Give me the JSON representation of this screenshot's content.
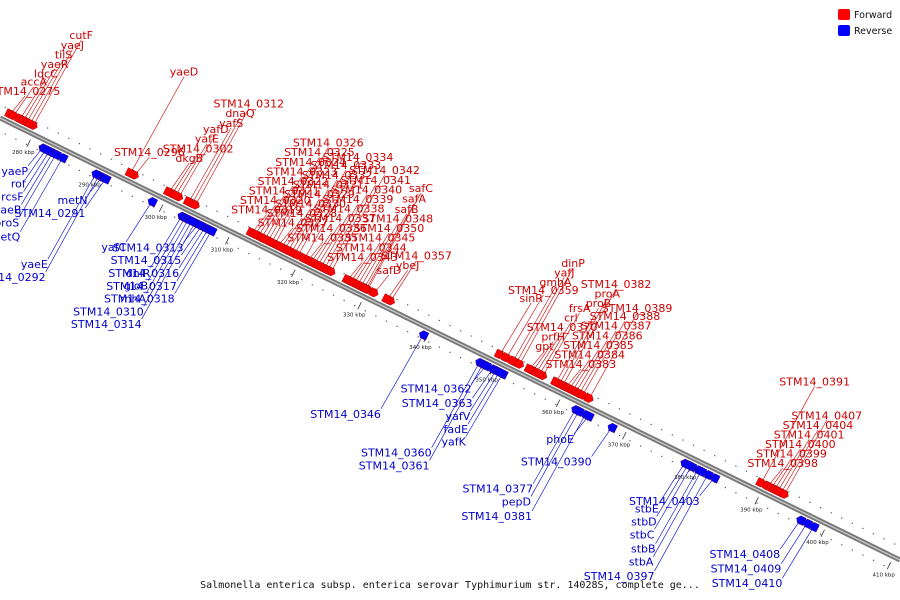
{
  "caption": "Salmonella enterica subsp. enterica serovar Typhimurium str. 14028S, complete ge...",
  "legend": {
    "placement": "top-right",
    "items": [
      {
        "label": "Forward",
        "color": "#ff0000"
      },
      {
        "label": "Reverse",
        "color": "#0000ff"
      }
    ]
  },
  "colors": {
    "forward": "#ff0000",
    "forward_label": "#cc0000",
    "reverse": "#0000ff",
    "reverse_label": "#0000cc",
    "backbone": "#777777"
  },
  "axis": {
    "unit": "kbp",
    "start_kbp": 275,
    "end_kbp": 411,
    "ticks": [
      {
        "label": "280 kbp",
        "kbp": 280
      },
      {
        "label": "290 kbp",
        "kbp": 290
      },
      {
        "label": "300 kbp",
        "kbp": 300
      },
      {
        "label": "310 kbp",
        "kbp": 310
      },
      {
        "label": "320 kbp",
        "kbp": 320
      },
      {
        "label": "330 kbp",
        "kbp": 330
      },
      {
        "label": "340 kbp",
        "kbp": 340
      },
      {
        "label": "350 kbp",
        "kbp": 350
      },
      {
        "label": "360 kbp",
        "kbp": 360
      },
      {
        "label": "370 kbp",
        "kbp": 370
      },
      {
        "label": "380 kbp",
        "kbp": 380
      },
      {
        "label": "390 kbp",
        "kbp": 390
      },
      {
        "label": "400 kbp",
        "kbp": 400
      },
      {
        "label": "410 kbp",
        "kbp": 410
      }
    ]
  },
  "forward_genes": [
    {
      "name": "tilS",
      "kbp": 278.5
    },
    {
      "name": "yaeR",
      "kbp": 278.0
    },
    {
      "name": "cutF",
      "kbp": 279.5
    },
    {
      "name": "yaeJ",
      "kbp": 279.0
    },
    {
      "name": "STM14_0275",
      "kbp": 276.0
    },
    {
      "name": "accA",
      "kbp": 276.5
    },
    {
      "name": "ldcC",
      "kbp": 277.5
    },
    {
      "name": "STM14_0296",
      "kbp": 294.8
    },
    {
      "name": "yafD",
      "kbp": 301.5
    },
    {
      "name": "yaeD",
      "kbp": 294.2
    },
    {
      "name": "STM14_0302",
      "kbp": 300.5
    },
    {
      "name": "dkgB",
      "kbp": 300.0
    },
    {
      "name": "dnaQ",
      "kbp": 303.5
    },
    {
      "name": "yafE",
      "kbp": 301.0
    },
    {
      "name": "yafS",
      "kbp": 303.0
    },
    {
      "name": "STM14_0312",
      "kbp": 304.0
    },
    {
      "name": "STM14_0319",
      "kbp": 312.5
    },
    {
      "name": "STM14_0320",
      "kbp": 313.0
    },
    {
      "name": "STM14_0321",
      "kbp": 313.5
    },
    {
      "name": "STM14_0322",
      "kbp": 314.0
    },
    {
      "name": "STM14_0323",
      "kbp": 314.5
    },
    {
      "name": "STM14_0324",
      "kbp": 315.0
    },
    {
      "name": "STM14_0325",
      "kbp": 315.5
    },
    {
      "name": "STM14_0326",
      "kbp": 316.0
    },
    {
      "name": "STM14_0327",
      "kbp": 316.5
    },
    {
      "name": "STM14_0330",
      "kbp": 317.5
    },
    {
      "name": "STM14_0328",
      "kbp": 317.0
    },
    {
      "name": "STM14_0329",
      "kbp": 318.0
    },
    {
      "name": "STM14_0331",
      "kbp": 318.5
    },
    {
      "name": "STM14_0332",
      "kbp": 319.0
    },
    {
      "name": "STM14_0333",
      "kbp": 319.5
    },
    {
      "name": "STM14_0334",
      "kbp": 320.5
    },
    {
      "name": "STM14_0335",
      "kbp": 321.0
    },
    {
      "name": "STM14_0336",
      "kbp": 321.5
    },
    {
      "name": "STM14_0337",
      "kbp": 322.0
    },
    {
      "name": "STM14_0338",
      "kbp": 322.5
    },
    {
      "name": "STM14_0339",
      "kbp": 323.0
    },
    {
      "name": "STM14_0340",
      "kbp": 323.5
    },
    {
      "name": "STM14_0341",
      "kbp": 324.0
    },
    {
      "name": "STM14_0342",
      "kbp": 324.5
    },
    {
      "name": "STM14_0343",
      "kbp": 327.0
    },
    {
      "name": "STM14_0344",
      "kbp": 327.5
    },
    {
      "name": "STM14_0345",
      "kbp": 328.0
    },
    {
      "name": "STM14_0350",
      "kbp": 328.5
    },
    {
      "name": "STM14_0348",
      "kbp": 329.0
    },
    {
      "name": "safB",
      "kbp": 329.5
    },
    {
      "name": "safC",
      "kbp": 330.0
    },
    {
      "name": "safA",
      "kbp": 329.8
    },
    {
      "name": "safD",
      "kbp": 331.0
    },
    {
      "name": "STM14_0357",
      "kbp": 333.5
    },
    {
      "name": "ybeJ",
      "kbp": 333.0
    },
    {
      "name": "sinR",
      "kbp": 350.0
    },
    {
      "name": "STM14_0359",
      "kbp": 351.0
    },
    {
      "name": "yafJ",
      "kbp": 352.5
    },
    {
      "name": "gmhA",
      "kbp": 352.0
    },
    {
      "name": "dinP",
      "kbp": 353.0
    },
    {
      "name": "prfH",
      "kbp": 355.0
    },
    {
      "name": "STM14_0370",
      "kbp": 355.5
    },
    {
      "name": "frsA",
      "kbp": 356.5
    },
    {
      "name": "gpt",
      "kbp": 354.5
    },
    {
      "name": "crl",
      "kbp": 356.0
    },
    {
      "name": "proA",
      "kbp": 359.0
    },
    {
      "name": "proB",
      "kbp": 358.5
    },
    {
      "name": "STM14_0382",
      "kbp": 359.5
    },
    {
      "name": "STM14_0383",
      "kbp": 360.0
    },
    {
      "name": "STM14_0384",
      "kbp": 360.5
    },
    {
      "name": "STM14_0385",
      "kbp": 361.0
    },
    {
      "name": "STM14_0386",
      "kbp": 361.5
    },
    {
      "name": "STM14_0387",
      "kbp": 362.0
    },
    {
      "name": "STM14_0388",
      "kbp": 362.5
    },
    {
      "name": "STM14_0389",
      "kbp": 363.5
    },
    {
      "name": "STM14_0391",
      "kbp": 389.5
    },
    {
      "name": "STM14_0398",
      "kbp": 390.5
    },
    {
      "name": "STM14_0399",
      "kbp": 391.0
    },
    {
      "name": "STM14_0400",
      "kbp": 391.5
    },
    {
      "name": "STM14_0401",
      "kbp": 392.0
    },
    {
      "name": "STM14_0404",
      "kbp": 392.5
    },
    {
      "name": "STM14_0407",
      "kbp": 393.0
    }
  ],
  "reverse_genes": [
    {
      "name": "rcsF",
      "kbp": 283.0
    },
    {
      "name": "yaeP",
      "kbp": 282.0
    },
    {
      "name": "yaeB",
      "kbp": 283.5
    },
    {
      "name": "rof",
      "kbp": 282.5
    },
    {
      "name": "proS",
      "kbp": 284.0
    },
    {
      "name": "metQ",
      "kbp": 285.0
    },
    {
      "name": "STM14_0292",
      "kbp": 290.5
    },
    {
      "name": "yaeE",
      "kbp": 290.0
    },
    {
      "name": "metN",
      "kbp": 291.0
    },
    {
      "name": "STM14_0291",
      "kbp": 291.5
    },
    {
      "name": "yafC",
      "kbp": 298.5
    },
    {
      "name": "dniR",
      "kbp": 303.0
    },
    {
      "name": "STM14_0314",
      "kbp": 305.0
    },
    {
      "name": "STM14_0315",
      "kbp": 306.0
    },
    {
      "name": "gloB",
      "kbp": 303.5
    },
    {
      "name": "STM14_0316",
      "kbp": 306.5
    },
    {
      "name": "rnhA",
      "kbp": 304.0
    },
    {
      "name": "STM14_0317",
      "kbp": 307.0
    },
    {
      "name": "STM14_0310",
      "kbp": 304.5
    },
    {
      "name": "STM14_0318",
      "kbp": 307.5
    },
    {
      "name": "STM14_0313",
      "kbp": 305.5
    },
    {
      "name": "STM14_0346",
      "kbp": 339.5
    },
    {
      "name": "STM14_0360",
      "kbp": 348.0
    },
    {
      "name": "STM14_0361",
      "kbp": 348.5
    },
    {
      "name": "STM14_0362",
      "kbp": 349.0
    },
    {
      "name": "STM14_0363",
      "kbp": 350.0
    },
    {
      "name": "yafV",
      "kbp": 350.5
    },
    {
      "name": "yafK",
      "kbp": 351.5
    },
    {
      "name": "fadE",
      "kbp": 351.0
    },
    {
      "name": "STM14_0377",
      "kbp": 362.5
    },
    {
      "name": "pepD",
      "kbp": 363.0
    },
    {
      "name": "STM14_0381",
      "kbp": 364.0
    },
    {
      "name": "phoE",
      "kbp": 364.5
    },
    {
      "name": "STM14_0390",
      "kbp": 368.0
    },
    {
      "name": "stbE",
      "kbp": 379.0
    },
    {
      "name": "stbC",
      "kbp": 380.0
    },
    {
      "name": "stbD",
      "kbp": 379.5
    },
    {
      "name": "stbB",
      "kbp": 381.0
    },
    {
      "name": "stbA",
      "kbp": 381.5
    },
    {
      "name": "STM14_0397",
      "kbp": 382.5
    },
    {
      "name": "STM14_0403",
      "kbp": 383.5
    },
    {
      "name": "STM14_0408",
      "kbp": 396.5
    },
    {
      "name": "STM14_0409",
      "kbp": 397.5
    },
    {
      "name": "STM14_0410",
      "kbp": 398.5
    }
  ]
}
